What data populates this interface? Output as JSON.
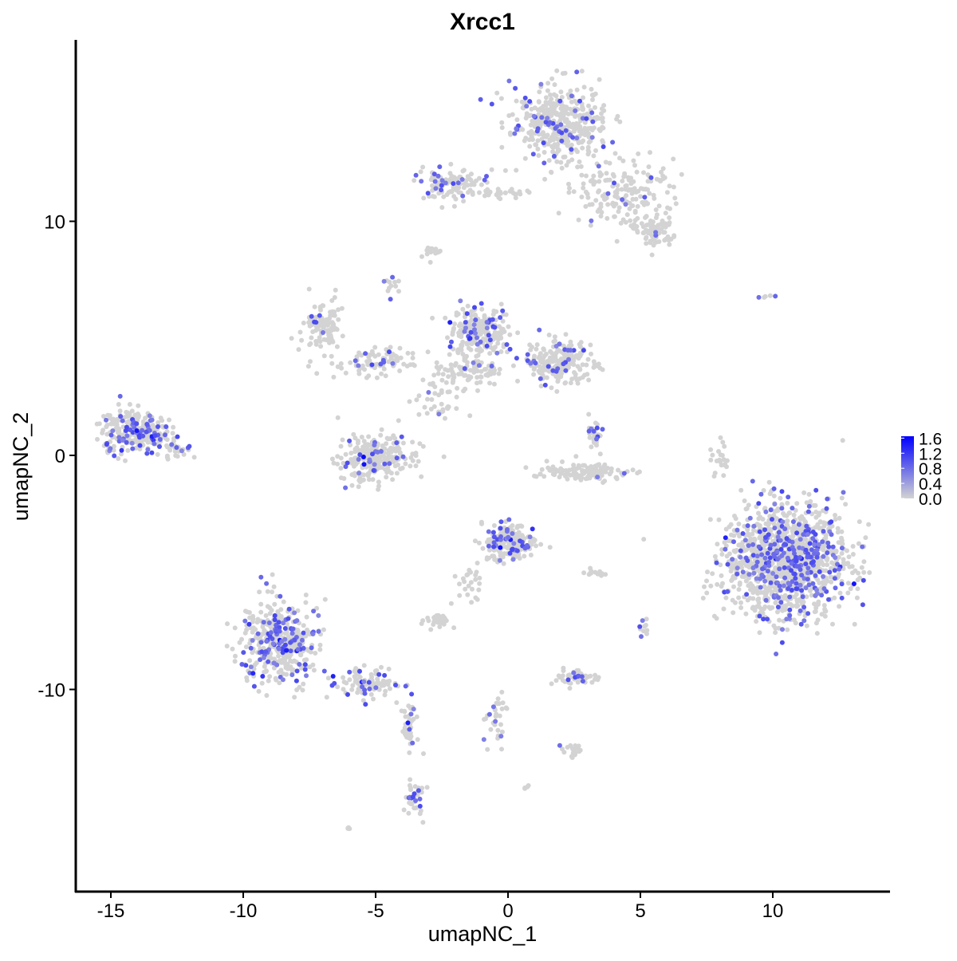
{
  "chart_data": {
    "type": "scatter",
    "title": "Xrcc1",
    "xlabel": "umapNC_1",
    "ylabel": "umapNC_2",
    "xlim": [
      -16.4,
      14.3
    ],
    "ylim": [
      -18.6,
      17.75
    ],
    "xticks": [
      -15,
      -10,
      -5,
      0,
      5,
      10
    ],
    "yticks": [
      -10,
      0,
      10
    ],
    "grid": false,
    "legend": {
      "position": "right",
      "type": "colorbar",
      "ticks": [
        "1.6",
        "1.2",
        "0.8",
        "0.4",
        "0.0"
      ],
      "range": [
        0,
        1.65
      ],
      "low_color": "#d3d3d3",
      "high_color": "#0000ff"
    },
    "clusters": [
      {
        "x": 1.9,
        "y": 14.2,
        "sx": 1.1,
        "sy": 1.0,
        "n": 420,
        "expr_frac": 0.1
      },
      {
        "x": 4.3,
        "y": 11.2,
        "sx": 1.2,
        "sy": 0.9,
        "n": 180,
        "expr_frac": 0.05
      },
      {
        "x": 5.5,
        "y": 9.6,
        "sx": 0.5,
        "sy": 0.4,
        "n": 80,
        "expr_frac": 0.05
      },
      {
        "x": -2.2,
        "y": 11.6,
        "sx": 0.8,
        "sy": 0.4,
        "n": 110,
        "expr_frac": 0.12
      },
      {
        "x": -0.7,
        "y": 11.2,
        "sx": 0.9,
        "sy": 0.15,
        "n": 30,
        "expr_frac": 0.05
      },
      {
        "x": -2.8,
        "y": 8.7,
        "sx": 0.2,
        "sy": 0.15,
        "n": 15,
        "expr_frac": 0
      },
      {
        "x": -4.4,
        "y": 7.2,
        "sx": 0.2,
        "sy": 0.3,
        "n": 12,
        "expr_frac": 0.3
      },
      {
        "x": -7.0,
        "y": 5.5,
        "sx": 0.5,
        "sy": 0.6,
        "n": 110,
        "expr_frac": 0.08
      },
      {
        "x": -5.0,
        "y": 4.0,
        "sx": 1.2,
        "sy": 0.4,
        "n": 90,
        "expr_frac": 0.05
      },
      {
        "x": -1.1,
        "y": 5.2,
        "sx": 0.7,
        "sy": 0.7,
        "n": 220,
        "expr_frac": 0.15
      },
      {
        "x": -1.4,
        "y": 3.6,
        "sx": 0.8,
        "sy": 0.4,
        "n": 90,
        "expr_frac": 0.05
      },
      {
        "x": 1.9,
        "y": 4.0,
        "sx": 0.8,
        "sy": 0.6,
        "n": 220,
        "expr_frac": 0.12
      },
      {
        "x": -2.6,
        "y": 2.3,
        "sx": 0.5,
        "sy": 0.6,
        "n": 40,
        "expr_frac": 0.05
      },
      {
        "x": -5.0,
        "y": -0.1,
        "sx": 0.9,
        "sy": 0.6,
        "n": 260,
        "expr_frac": 0.1
      },
      {
        "x": -14.0,
        "y": 1.0,
        "sx": 0.8,
        "sy": 0.6,
        "n": 260,
        "expr_frac": 0.25
      },
      {
        "x": -12.5,
        "y": 0.2,
        "sx": 0.3,
        "sy": 0.3,
        "n": 25,
        "expr_frac": 0.1
      },
      {
        "x": 2.9,
        "y": -0.7,
        "sx": 1.0,
        "sy": 0.25,
        "n": 130,
        "expr_frac": 0.03
      },
      {
        "x": 3.3,
        "y": 0.8,
        "sx": 0.2,
        "sy": 0.4,
        "n": 30,
        "expr_frac": 0.1
      },
      {
        "x": 8.0,
        "y": -0.2,
        "sx": 0.2,
        "sy": 0.6,
        "n": 20,
        "expr_frac": 0
      },
      {
        "x": 10.5,
        "y": -4.5,
        "sx": 1.4,
        "sy": 1.5,
        "n": 1300,
        "expr_frac": 0.2
      },
      {
        "x": 0.0,
        "y": -3.7,
        "sx": 0.6,
        "sy": 0.5,
        "n": 210,
        "expr_frac": 0.2
      },
      {
        "x": -1.4,
        "y": -5.5,
        "sx": 0.3,
        "sy": 0.6,
        "n": 25,
        "expr_frac": 0.05
      },
      {
        "x": -8.6,
        "y": -8.0,
        "sx": 0.9,
        "sy": 1.1,
        "n": 420,
        "expr_frac": 0.25
      },
      {
        "x": -5.3,
        "y": -9.7,
        "sx": 0.8,
        "sy": 0.4,
        "n": 90,
        "expr_frac": 0.2
      },
      {
        "x": -3.8,
        "y": -11.5,
        "sx": 0.2,
        "sy": 0.8,
        "n": 40,
        "expr_frac": 0.15
      },
      {
        "x": -3.5,
        "y": -14.8,
        "sx": 0.2,
        "sy": 0.6,
        "n": 40,
        "expr_frac": 0.3
      },
      {
        "x": -2.6,
        "y": -7.0,
        "sx": 0.3,
        "sy": 0.2,
        "n": 35,
        "expr_frac": 0
      },
      {
        "x": 2.5,
        "y": -9.5,
        "sx": 0.5,
        "sy": 0.2,
        "n": 55,
        "expr_frac": 0.05
      },
      {
        "x": 3.2,
        "y": -5.0,
        "sx": 0.3,
        "sy": 0.1,
        "n": 12,
        "expr_frac": 0
      },
      {
        "x": -0.5,
        "y": -11.2,
        "sx": 0.3,
        "sy": 0.8,
        "n": 35,
        "expr_frac": 0.2
      },
      {
        "x": 2.4,
        "y": -12.6,
        "sx": 0.3,
        "sy": 0.2,
        "n": 20,
        "expr_frac": 0.1
      },
      {
        "x": 5.1,
        "y": -7.3,
        "sx": 0.1,
        "sy": 0.3,
        "n": 10,
        "expr_frac": 0.4
      },
      {
        "x": 9.7,
        "y": 6.8,
        "sx": 0.2,
        "sy": 0.05,
        "n": 5,
        "expr_frac": 0.4
      },
      {
        "x": 0.7,
        "y": -14.2,
        "sx": 0.1,
        "sy": 0.1,
        "n": 4,
        "expr_frac": 0
      },
      {
        "x": -6.0,
        "y": -16.0,
        "sx": 0.1,
        "sy": 0.1,
        "n": 4,
        "expr_frac": 0
      }
    ]
  }
}
